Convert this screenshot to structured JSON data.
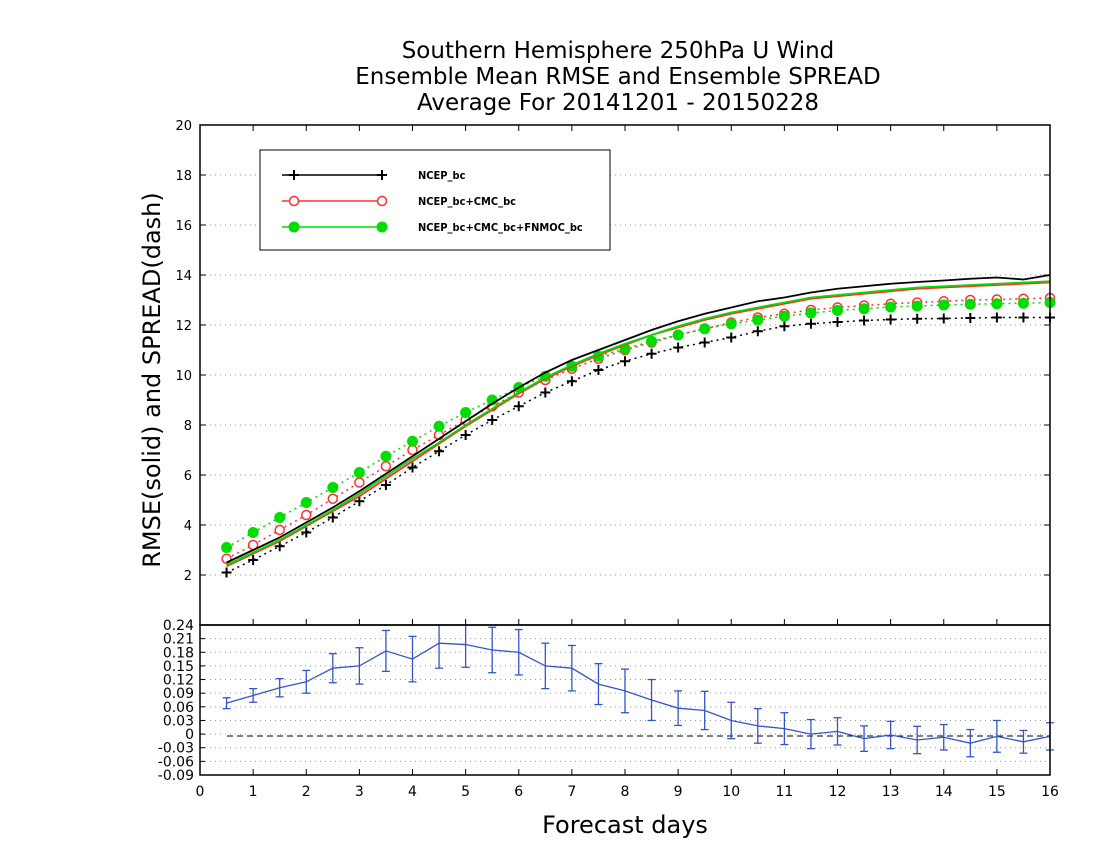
{
  "chart_data": [
    {
      "type": "line",
      "title": [
        "Southern Hemisphere 250hPa U Wind",
        "Ensemble Mean RMSE and Ensemble SPREAD",
        "Average For 20141201 - 20150228"
      ],
      "xlabel": "Forecast days",
      "ylabel": "RMSE(solid) and SPREAD(dash)",
      "xlim": [
        0,
        16
      ],
      "ylim": [
        0,
        20
      ],
      "x_ticks": [
        "0",
        "1",
        "2",
        "3",
        "4",
        "5",
        "6",
        "7",
        "8",
        "9",
        "10",
        "11",
        "12",
        "13",
        "14",
        "15",
        "16"
      ],
      "y_ticks": [
        "2",
        "4",
        "6",
        "8",
        "10",
        "12",
        "14",
        "16",
        "18",
        "20"
      ],
      "grid": "horizontal dotted",
      "legend_position": "top-left",
      "x": [
        0.5,
        1,
        1.5,
        2,
        2.5,
        3,
        3.5,
        4,
        4.5,
        5,
        5.5,
        6,
        6.5,
        7,
        7.5,
        8,
        8.5,
        9,
        9.5,
        10,
        10.5,
        11,
        11.5,
        12,
        12.5,
        13,
        13.5,
        14,
        14.5,
        15,
        15.5,
        16
      ],
      "series": [
        {
          "name": "NCEP_bc",
          "color": "#000000",
          "marker": "plus",
          "rmse": [
            2.5,
            3.0,
            3.5,
            4.1,
            4.7,
            5.35,
            6.05,
            6.75,
            7.45,
            8.15,
            8.85,
            9.5,
            10.1,
            10.6,
            11.0,
            11.4,
            11.8,
            12.15,
            12.45,
            12.7,
            12.95,
            13.1,
            13.3,
            13.45,
            13.55,
            13.65,
            13.72,
            13.78,
            13.85,
            13.9,
            13.82,
            14.0
          ],
          "spread": [
            2.1,
            2.6,
            3.15,
            3.7,
            4.3,
            4.95,
            5.6,
            6.3,
            6.95,
            7.6,
            8.2,
            8.75,
            9.3,
            9.75,
            10.2,
            10.55,
            10.85,
            11.1,
            11.3,
            11.5,
            11.75,
            11.95,
            12.05,
            12.12,
            12.18,
            12.22,
            12.25,
            12.26,
            12.28,
            12.3,
            12.3,
            12.3
          ]
        },
        {
          "name": "NCEP_bc+CMC_bc",
          "color": "#ff3030",
          "marker": "open-circle",
          "rmse": [
            2.35,
            2.85,
            3.35,
            3.95,
            4.55,
            5.15,
            5.85,
            6.55,
            7.25,
            7.95,
            8.6,
            9.25,
            9.85,
            10.35,
            10.8,
            11.2,
            11.6,
            11.9,
            12.2,
            12.45,
            12.65,
            12.85,
            13.05,
            13.15,
            13.25,
            13.35,
            13.45,
            13.5,
            13.55,
            13.6,
            13.65,
            13.7
          ],
          "spread": [
            2.65,
            3.2,
            3.8,
            4.4,
            5.05,
            5.7,
            6.35,
            7.0,
            7.6,
            8.2,
            8.75,
            9.3,
            9.8,
            10.25,
            10.65,
            11.0,
            11.3,
            11.6,
            11.85,
            12.1,
            12.3,
            12.45,
            12.6,
            12.7,
            12.78,
            12.85,
            12.9,
            12.95,
            13.0,
            13.02,
            13.05,
            13.08
          ]
        },
        {
          "name": "NCEP_bc+CMC_bc+FNMOC_bc",
          "color": "#00dd00",
          "marker": "filled-circle",
          "rmse": [
            2.4,
            2.9,
            3.4,
            4.0,
            4.6,
            5.25,
            5.95,
            6.65,
            7.3,
            8.0,
            8.65,
            9.3,
            9.9,
            10.4,
            10.85,
            11.25,
            11.6,
            11.95,
            12.25,
            12.5,
            12.7,
            12.9,
            13.1,
            13.2,
            13.3,
            13.4,
            13.5,
            13.55,
            13.6,
            13.65,
            13.7,
            13.75
          ],
          "spread": [
            3.1,
            3.7,
            4.3,
            4.9,
            5.5,
            6.1,
            6.75,
            7.35,
            7.95,
            8.5,
            9.0,
            9.5,
            9.95,
            10.35,
            10.75,
            11.05,
            11.35,
            11.6,
            11.85,
            12.05,
            12.2,
            12.35,
            12.48,
            12.58,
            12.65,
            12.72,
            12.76,
            12.8,
            12.83,
            12.85,
            12.87,
            12.9
          ]
        }
      ]
    },
    {
      "type": "line",
      "xlabel": "Forecast days",
      "xlim": [
        0,
        16
      ],
      "ylim": [
        -0.09,
        0.24
      ],
      "y_ticks": [
        "0.24",
        "0.21",
        "0.18",
        "0.15",
        "0.12",
        "0.09",
        "0.06",
        "0.03",
        "0",
        "-0.03",
        "-0.06",
        "-0.09"
      ],
      "grid": "horizontal dotted",
      "zero_line": "dashed",
      "series": [
        {
          "color": "#3355cc",
          "x": [
            0.5,
            1,
            1.5,
            2,
            2.5,
            3,
            3.5,
            4,
            4.5,
            5,
            5.5,
            6,
            6.5,
            7,
            7.5,
            8,
            8.5,
            9,
            9.5,
            10,
            10.5,
            11,
            11.5,
            12,
            12.5,
            13,
            13.5,
            14,
            14.5,
            15,
            15.5,
            16
          ],
          "values": [
            0.068,
            0.085,
            0.102,
            0.115,
            0.145,
            0.15,
            0.183,
            0.165,
            0.2,
            0.197,
            0.185,
            0.18,
            0.15,
            0.145,
            0.11,
            0.095,
            0.075,
            0.057,
            0.052,
            0.03,
            0.018,
            0.012,
            0.0,
            0.006,
            -0.01,
            -0.002,
            -0.013,
            -0.007,
            -0.02,
            -0.005,
            -0.017,
            -0.005
          ],
          "error": [
            0.012,
            0.015,
            0.02,
            0.025,
            0.032,
            0.04,
            0.045,
            0.05,
            0.055,
            0.05,
            0.05,
            0.05,
            0.05,
            0.05,
            0.045,
            0.048,
            0.045,
            0.038,
            0.042,
            0.04,
            0.038,
            0.035,
            0.032,
            0.03,
            0.028,
            0.03,
            0.03,
            0.028,
            0.03,
            0.035,
            0.025,
            0.03
          ]
        }
      ]
    }
  ]
}
